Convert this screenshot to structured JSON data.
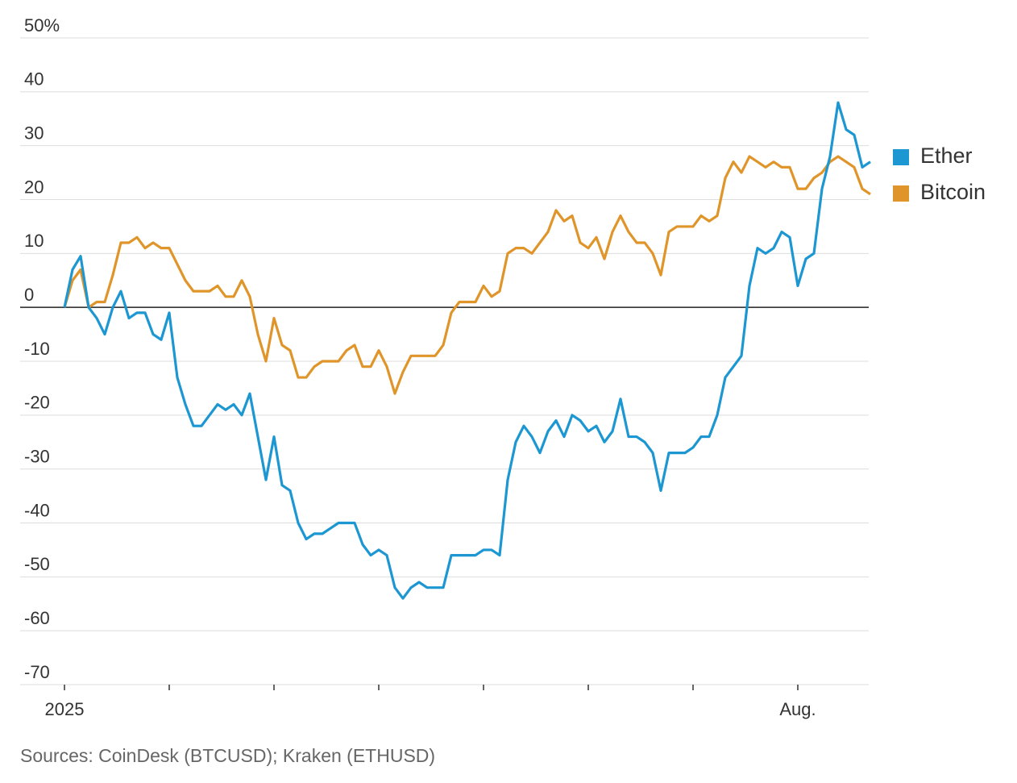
{
  "chart_data": {
    "type": "line",
    "source": "Sources: CoinDesk (BTCUSD); Kraken (ETHUSD)",
    "categories": [
      "2025",
      null,
      null,
      null,
      null,
      null,
      null,
      null,
      null,
      null,
      null,
      null,
      null,
      null,
      null,
      null,
      null,
      null,
      null,
      null,
      null,
      null,
      null,
      null,
      null,
      null,
      null,
      null,
      null,
      null,
      null,
      null,
      null,
      null,
      null,
      null,
      null,
      null,
      null,
      null,
      null,
      null,
      null,
      null,
      null,
      null,
      null,
      null,
      null,
      null,
      null,
      null,
      null,
      null,
      null,
      null,
      null,
      null,
      null,
      null,
      null,
      null,
      null,
      null,
      null,
      null,
      null,
      null,
      null,
      null,
      null,
      null,
      null,
      null,
      null,
      null,
      null,
      null,
      null,
      null,
      null,
      null,
      null,
      null,
      null,
      null,
      null,
      null,
      null,
      null,
      null,
      "Aug.",
      null,
      null,
      null,
      null,
      null,
      null,
      null,
      null,
      null
    ],
    "series": [
      {
        "name": "Ether",
        "color": "#1c97d2",
        "values": [
          0,
          7,
          9.5,
          0,
          -2,
          -5,
          0,
          3,
          -2,
          -1,
          -1,
          -5,
          -6,
          -1,
          -13,
          -18,
          -22,
          -22,
          -20,
          -18,
          -19,
          -18,
          -20,
          -16,
          -24,
          -32,
          -24,
          -33,
          -34,
          -40,
          -43,
          -42,
          -42,
          -41,
          -40,
          -40,
          -40,
          -44,
          -46,
          -45,
          -46,
          -52,
          -54,
          -52,
          -51,
          -52,
          -52,
          -52,
          -46,
          -46,
          -46,
          -46,
          -45,
          -45,
          -46,
          -32,
          -25,
          -22,
          -24,
          -27,
          -23,
          -21,
          -24,
          -20,
          -21,
          -23,
          -22,
          -25,
          -23,
          -17,
          -24,
          -24,
          -25,
          -27,
          -34,
          -27,
          -27,
          -27,
          -26,
          -24,
          -24,
          -20,
          -13,
          -11,
          -9,
          4,
          11,
          10,
          11,
          14,
          13,
          4,
          9,
          10,
          22,
          28,
          38,
          33,
          32,
          26,
          27
        ]
      },
      {
        "name": "Bitcoin",
        "color": "#e0952a",
        "values": [
          0,
          5,
          7,
          0,
          1,
          1,
          6,
          12,
          12,
          13,
          11,
          12,
          11,
          11,
          8,
          5,
          3,
          3,
          3,
          4,
          2,
          2,
          5,
          2,
          -5,
          -10,
          -2,
          -7,
          -8,
          -13,
          -13,
          -11,
          -10,
          -10,
          -10,
          -8,
          -7,
          -11,
          -11,
          -8,
          -11,
          -16,
          -12,
          -9,
          -9,
          -9,
          -9,
          -7,
          -1,
          1,
          1,
          1,
          4,
          2,
          3,
          10,
          11,
          11,
          10,
          12,
          14,
          18,
          16,
          17,
          12,
          11,
          13,
          9,
          14,
          17,
          14,
          12,
          12,
          10,
          6,
          14,
          15,
          15,
          15,
          17,
          16,
          17,
          24,
          27,
          25,
          28,
          27,
          26,
          27,
          26,
          26,
          22,
          22,
          24,
          25,
          27,
          28,
          27,
          26,
          22,
          21
        ]
      }
    ],
    "ylim": [
      -70,
      50
    ],
    "yticks": [
      -70,
      -60,
      -50,
      -40,
      -30,
      -20,
      -10,
      0,
      10,
      20,
      30,
      40,
      {
        "value": 50,
        "label": "50%"
      }
    ],
    "grid": true
  }
}
